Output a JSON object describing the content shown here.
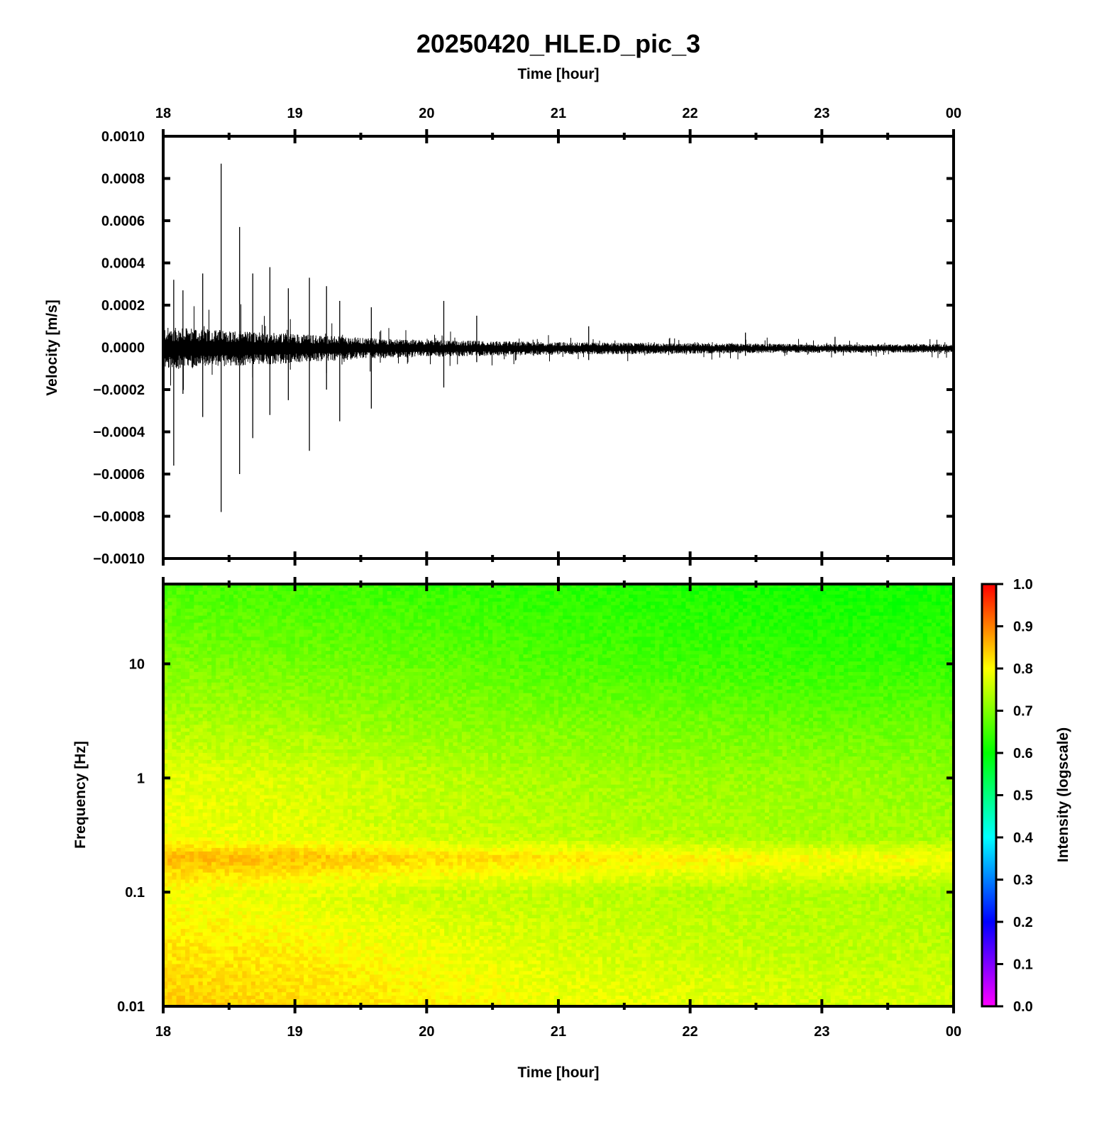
{
  "title": "20250420_HLE.D_pic_3",
  "chart_data": [
    {
      "type": "line",
      "panel": "waveform",
      "xlabel_top": "Time [hour]",
      "ylabel": "Velocity [m/s]",
      "x_ticks": [
        "18",
        "19",
        "20",
        "21",
        "22",
        "23",
        "00"
      ],
      "y_ticks": [
        "0.0010",
        "0.0008",
        "0.0006",
        "0.0004",
        "0.0002",
        "0.0000",
        "−0.0002",
        "−0.0004",
        "−0.0006",
        "−0.0008",
        "−0.0010"
      ],
      "xlim": [
        18,
        24
      ],
      "ylim": [
        -0.001,
        0.001
      ],
      "series": [
        {
          "color": "#000000",
          "envelope": [
            {
              "x": 18.0,
              "amp": 0.0001
            },
            {
              "x": 18.4,
              "amp": 9e-05
            },
            {
              "x": 19.0,
              "amp": 7e-05
            },
            {
              "x": 19.5,
              "amp": 5e-05
            },
            {
              "x": 20.0,
              "amp": 4e-05
            },
            {
              "x": 21.0,
              "amp": 3e-05
            },
            {
              "x": 22.0,
              "amp": 2.5e-05
            },
            {
              "x": 23.0,
              "amp": 2e-05
            },
            {
              "x": 24.0,
              "amp": 2e-05
            }
          ],
          "spikes": [
            {
              "x": 18.08,
              "max": 0.00032,
              "min": -0.00056
            },
            {
              "x": 18.15,
              "max": 0.00027,
              "min": -0.00022
            },
            {
              "x": 18.3,
              "max": 0.00035,
              "min": -0.00033
            },
            {
              "x": 18.44,
              "max": 0.00087,
              "min": -0.00078
            },
            {
              "x": 18.58,
              "max": 0.00057,
              "min": -0.0006
            },
            {
              "x": 18.68,
              "max": 0.00035,
              "min": -0.00043
            },
            {
              "x": 18.81,
              "max": 0.00038,
              "min": -0.00032
            },
            {
              "x": 18.95,
              "max": 0.00028,
              "min": -0.00025
            },
            {
              "x": 19.11,
              "max": 0.00033,
              "min": -0.00049
            },
            {
              "x": 19.24,
              "max": 0.00029,
              "min": -0.0002
            },
            {
              "x": 19.34,
              "max": 0.00022,
              "min": -0.00035
            },
            {
              "x": 19.58,
              "max": 0.00019,
              "min": -0.00029
            },
            {
              "x": 20.13,
              "max": 0.00022,
              "min": -0.00019
            },
            {
              "x": 20.38,
              "max": 0.00015,
              "min": -7e-05
            },
            {
              "x": 21.23,
              "max": 0.0001,
              "min": -6e-05
            },
            {
              "x": 22.42,
              "max": 7e-05,
              "min": -4e-05
            },
            {
              "x": 23.1,
              "max": 5e-05,
              "min": -3e-05
            }
          ]
        }
      ]
    },
    {
      "type": "heatmap",
      "panel": "spectrogram",
      "xlabel": "Time [hour]",
      "ylabel": "Frequency [Hz]",
      "x_ticks": [
        "18",
        "19",
        "20",
        "21",
        "22",
        "23",
        "00"
      ],
      "y_ticks": [
        "10",
        "1",
        "0.1",
        "0.01"
      ],
      "xlim": [
        18,
        24
      ],
      "ylim": [
        0.01,
        50
      ],
      "y_scale": "log",
      "intensity_grid": {
        "x": [
          18,
          19,
          20,
          21,
          22,
          23,
          24
        ],
        "y": [
          0.01,
          0.03,
          0.1,
          0.2,
          0.3,
          1,
          3,
          10,
          50
        ],
        "z": [
          [
            0.84,
            0.83,
            0.81,
            0.79,
            0.78,
            0.77,
            0.77
          ],
          [
            0.82,
            0.81,
            0.79,
            0.77,
            0.76,
            0.75,
            0.75
          ],
          [
            0.79,
            0.78,
            0.76,
            0.75,
            0.74,
            0.74,
            0.73
          ],
          [
            0.86,
            0.85,
            0.83,
            0.82,
            0.81,
            0.8,
            0.8
          ],
          [
            0.79,
            0.78,
            0.76,
            0.75,
            0.74,
            0.73,
            0.73
          ],
          [
            0.78,
            0.77,
            0.75,
            0.73,
            0.72,
            0.72,
            0.71
          ],
          [
            0.74,
            0.73,
            0.71,
            0.7,
            0.69,
            0.68,
            0.68
          ],
          [
            0.7,
            0.69,
            0.68,
            0.66,
            0.65,
            0.64,
            0.64
          ],
          [
            0.66,
            0.65,
            0.64,
            0.63,
            0.62,
            0.61,
            0.61
          ]
        ]
      },
      "colorbar": {
        "label": "Intensity (logscale)",
        "ticks": [
          "1.0",
          "0.9",
          "0.8",
          "0.7",
          "0.6",
          "0.5",
          "0.4",
          "0.3",
          "0.2",
          "0.1",
          "0.0"
        ],
        "range": [
          0,
          1
        ],
        "colormap": [
          "#ff00ff",
          "#0000ff",
          "#00ffff",
          "#00ff00",
          "#ffff00",
          "#ff0000"
        ]
      }
    }
  ]
}
